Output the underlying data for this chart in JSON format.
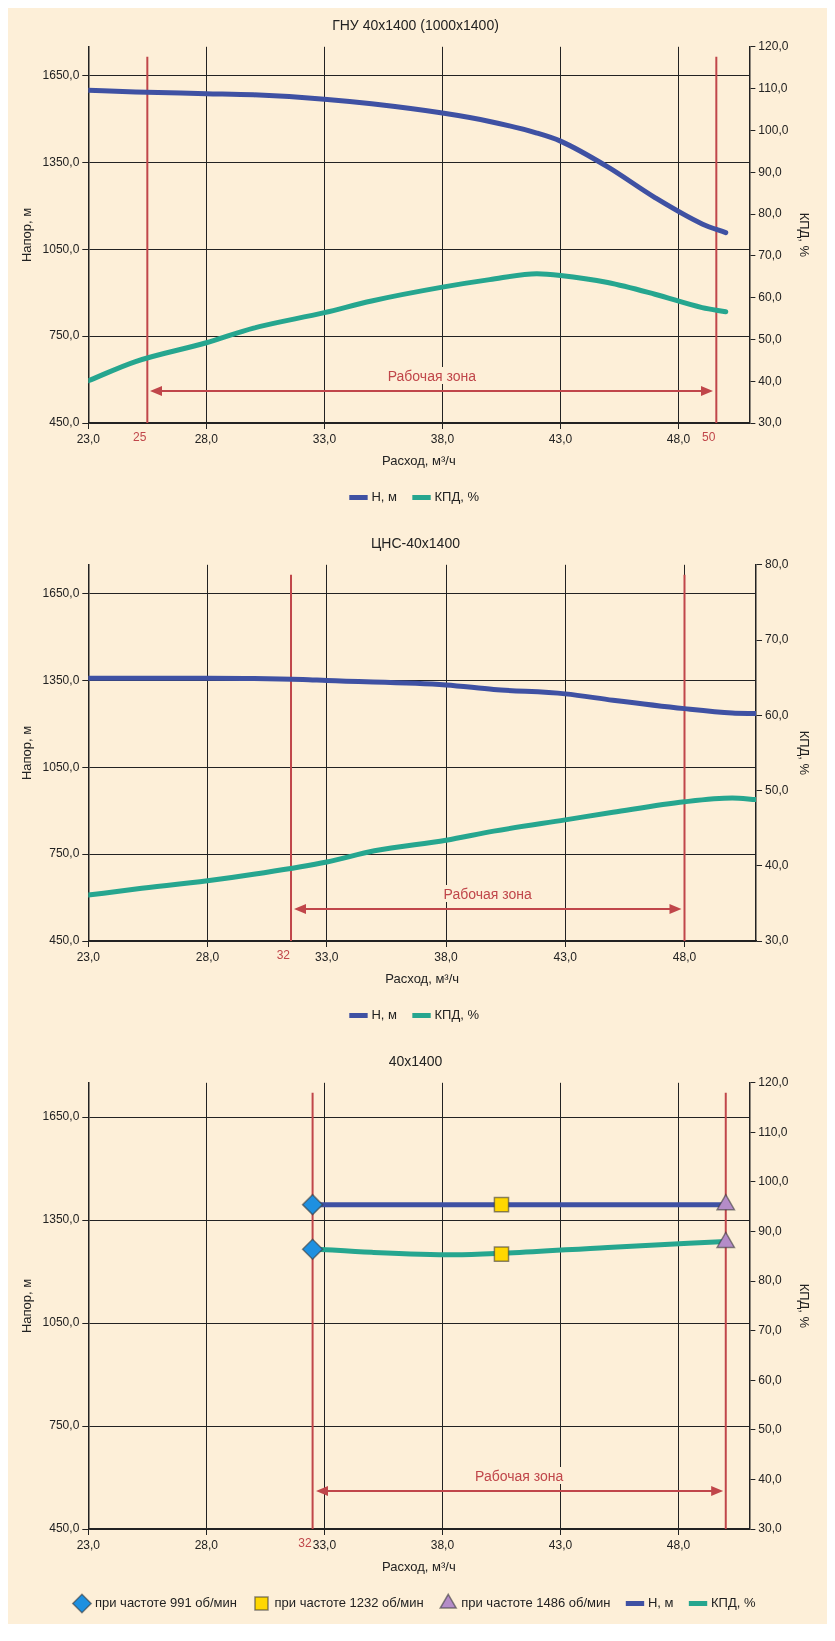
{
  "chart_data": [
    {
      "type": "line",
      "title": "ГНУ 40x1400 (1000x1400)",
      "xlabel": "Расход, м³/ч",
      "ylabel": "Напор, м",
      "y2label": "КПД, %",
      "xlim": [
        23,
        51
      ],
      "xticks": [
        {
          "value": 23,
          "label": "23,0"
        },
        {
          "value": 28,
          "label": "28,0"
        },
        {
          "value": 33,
          "label": "33,0"
        },
        {
          "value": 38,
          "label": "38,0"
        },
        {
          "value": 43,
          "label": "43,0"
        },
        {
          "value": 48,
          "label": "48,0"
        }
      ],
      "ylim": [
        450,
        1750
      ],
      "yticks": [
        {
          "value": 450,
          "label": "450,0"
        },
        {
          "value": 750,
          "label": "750,0"
        },
        {
          "value": 1050,
          "label": "1050,0"
        },
        {
          "value": 1350,
          "label": "1350,0"
        },
        {
          "value": 1650,
          "label": "1650,0"
        }
      ],
      "y2lim": [
        30,
        120
      ],
      "y2ticks": [
        {
          "value": 30,
          "label": "30,0"
        },
        {
          "value": 40,
          "label": "40,0"
        },
        {
          "value": 50,
          "label": "50,0"
        },
        {
          "value": 60,
          "label": "60,0"
        },
        {
          "value": 70,
          "label": "70,0"
        },
        {
          "value": 80,
          "label": "80,0"
        },
        {
          "value": 90,
          "label": "90,0"
        },
        {
          "value": 100,
          "label": "100,0"
        },
        {
          "value": 110,
          "label": "110,0"
        },
        {
          "value": 120,
          "label": "120,0"
        }
      ],
      "series": [
        {
          "name": "Н, м",
          "color": "#3f51a3",
          "x": [
            23,
            25,
            28,
            30,
            33,
            35,
            38,
            40,
            42,
            43,
            45,
            47,
            49,
            50
          ],
          "values": [
            1600,
            1594,
            1588,
            1584,
            1569,
            1553,
            1521,
            1492,
            1452,
            1424,
            1335,
            1229,
            1138,
            1108
          ]
        },
        {
          "name": "КПД, %",
          "color": "#26a68f",
          "axis": "y2",
          "x": [
            23,
            25,
            28,
            30,
            33,
            35,
            38,
            40,
            42,
            43,
            45,
            47,
            49,
            50
          ],
          "values": [
            40.1,
            44.7,
            49.2,
            52.7,
            56.4,
            59.2,
            62.5,
            64.3,
            65.7,
            65.3,
            63.6,
            60.8,
            57.6,
            56.6
          ]
        }
      ],
      "ref_lines": [
        {
          "axis": "x",
          "value": 25.5,
          "label": "25",
          "color": "#c0464a"
        },
        {
          "axis": "x",
          "value": 49.6,
          "label": "50",
          "color": "#c0464a"
        }
      ],
      "annotations": [
        "Рабочая зона"
      ],
      "grid": true,
      "legend": "bottom"
    },
    {
      "type": "line",
      "title": "ЦНС-40x1400",
      "xlabel": "Расход, м³/ч",
      "ylabel": "Напор, м",
      "y2label": "КПД, %",
      "xlim": [
        23,
        51
      ],
      "xticks": [
        {
          "value": 23,
          "label": "23,0"
        },
        {
          "value": 28,
          "label": "28,0"
        },
        {
          "value": 33,
          "label": "33,0"
        },
        {
          "value": 38,
          "label": "38,0"
        },
        {
          "value": 43,
          "label": "43,0"
        },
        {
          "value": 48,
          "label": "48,0"
        }
      ],
      "ylim": [
        450,
        1750
      ],
      "yticks": [
        {
          "value": 450,
          "label": "450,0"
        },
        {
          "value": 750,
          "label": "750,0"
        },
        {
          "value": 1050,
          "label": "1050,0"
        },
        {
          "value": 1350,
          "label": "1350,0"
        },
        {
          "value": 1650,
          "label": "1650,0"
        }
      ],
      "y2lim": [
        30,
        80
      ],
      "y2ticks": [
        {
          "value": 30,
          "label": "30,0"
        },
        {
          "value": 40,
          "label": "40,0"
        },
        {
          "value": 50,
          "label": "50,0"
        },
        {
          "value": 60,
          "label": "60,0"
        },
        {
          "value": 70,
          "label": "70,0"
        },
        {
          "value": 80,
          "label": "80,0"
        }
      ],
      "series": [
        {
          "name": "Н, м",
          "color": "#3f51a3",
          "x": [
            23,
            28,
            32,
            33,
            38,
            40,
            43,
            45,
            48,
            50,
            51
          ],
          "values": [
            1358,
            1358,
            1354,
            1350,
            1335,
            1319,
            1304,
            1282,
            1253,
            1238,
            1236
          ]
        },
        {
          "name": "КПД, %",
          "color": "#26a68f",
          "axis": "y2",
          "x": [
            23,
            25,
            28,
            30,
            33,
            35,
            38,
            40,
            43,
            45,
            48,
            50,
            51
          ],
          "values": [
            36.1,
            36.9,
            38.0,
            38.9,
            40.5,
            42.0,
            43.4,
            44.6,
            46.1,
            47.1,
            48.5,
            49.0,
            48.8
          ]
        }
      ],
      "ref_lines": [
        {
          "axis": "x",
          "value": 31.5,
          "label": "32",
          "color": "#c0464a"
        },
        {
          "axis": "x",
          "value": 48,
          "label": null,
          "color": "#c0464a"
        }
      ],
      "annotations": [
        "Рабочая зона"
      ],
      "grid": true,
      "legend": "bottom"
    },
    {
      "type": "line",
      "title": "40x1400",
      "xlabel": "Расход, м³/ч",
      "ylabel": "Напор, м",
      "y2label": "КПД, %",
      "xlim": [
        23,
        51
      ],
      "xticks": [
        {
          "value": 23,
          "label": "23,0"
        },
        {
          "value": 28,
          "label": "28,0"
        },
        {
          "value": 33,
          "label": "33,0"
        },
        {
          "value": 38,
          "label": "38,0"
        },
        {
          "value": 43,
          "label": "43,0"
        },
        {
          "value": 48,
          "label": "48,0"
        }
      ],
      "ylim": [
        450,
        1750
      ],
      "yticks": [
        {
          "value": 450,
          "label": "450,0"
        },
        {
          "value": 750,
          "label": "750,0"
        },
        {
          "value": 1050,
          "label": "1050,0"
        },
        {
          "value": 1350,
          "label": "1350,0"
        },
        {
          "value": 1650,
          "label": "1650,0"
        }
      ],
      "y2lim": [
        30,
        120
      ],
      "y2ticks": [
        {
          "value": 30,
          "label": "30,0"
        },
        {
          "value": 40,
          "label": "40,0"
        },
        {
          "value": 50,
          "label": "50,0"
        },
        {
          "value": 60,
          "label": "60,0"
        },
        {
          "value": 70,
          "label": "70,0"
        },
        {
          "value": 80,
          "label": "80,0"
        },
        {
          "value": 90,
          "label": "90,0"
        },
        {
          "value": 100,
          "label": "100,0"
        },
        {
          "value": 110,
          "label": "110,0"
        },
        {
          "value": 120,
          "label": "120,0"
        }
      ],
      "series": [
        {
          "name": "Н, м",
          "color": "#3f51a3",
          "x": [
            32.5,
            40.5,
            50
          ],
          "values": [
            1395,
            1395,
            1395
          ]
        },
        {
          "name": "КПД, %",
          "color": "#26a68f",
          "axis": "y2",
          "x": [
            32.5,
            35,
            38.5,
            40.5,
            45,
            50
          ],
          "values": [
            86.5,
            85.8,
            85.3,
            85.6,
            86.8,
            88.0
          ]
        },
        {
          "name": "при частоте 991 об/мин",
          "type": "scatter",
          "marker": "diamond",
          "color": "#1e90e0",
          "x": [
            32.5,
            32.5
          ],
          "values": [
            1395,
            1265
          ]
        },
        {
          "name": "при частоте 1232 об/мин",
          "type": "scatter",
          "marker": "square",
          "color": "#ffd700",
          "x": [
            40.5,
            40.5
          ],
          "values": [
            1395,
            1251
          ]
        },
        {
          "name": "при частоте 1486 об/мин",
          "type": "scatter",
          "marker": "triangle",
          "color": "#b48cc8",
          "x": [
            50,
            50
          ],
          "values": [
            1395,
            1285
          ]
        }
      ],
      "ref_lines": [
        {
          "axis": "x",
          "value": 32.5,
          "label": "32",
          "color": "#c0464a"
        },
        {
          "axis": "x",
          "value": 50,
          "label": null,
          "color": "#c0464a"
        }
      ],
      "annotations": [
        "Рабочая зона"
      ],
      "grid": true,
      "legend": "bottom"
    }
  ]
}
